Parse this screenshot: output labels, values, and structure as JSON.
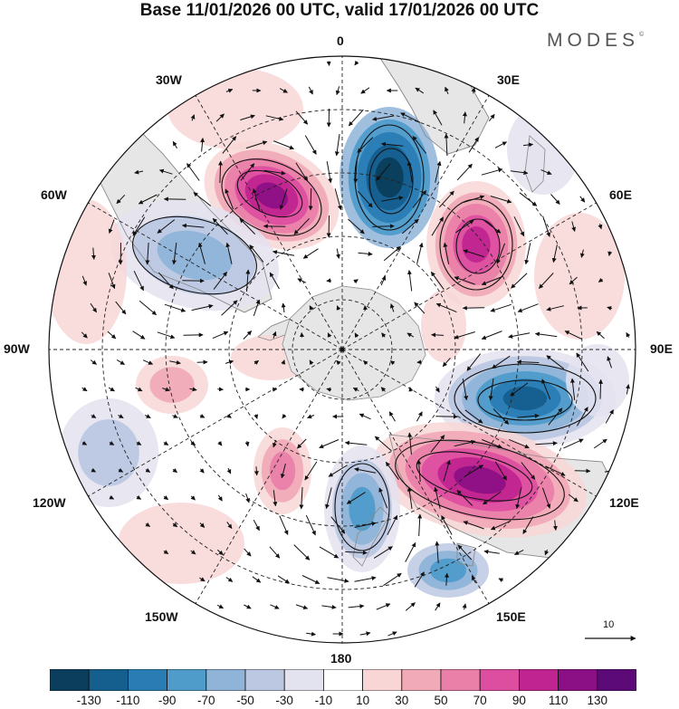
{
  "title": "Base 11/01/2026 00 UTC, valid 17/01/2026 00 UTC",
  "brand": "MODES",
  "brand_mark": "©",
  "longitude_labels": {
    "lon_0": "0",
    "lon_30e": "30E",
    "lon_60e": "60E",
    "lon_90e": "90E",
    "lon_120e": "120E",
    "lon_150e": "150E",
    "lon_180": "180",
    "lon_150w": "150W",
    "lon_120w": "120W",
    "lon_90w": "90W",
    "lon_60w": "60W",
    "lon_30w": "30W"
  },
  "reference_vector": {
    "label": "10"
  },
  "colorbar": {
    "colors": [
      "#0b3d5c",
      "#155f8f",
      "#2a7db4",
      "#4f9ccb",
      "#8fb4d8",
      "#bcc8e2",
      "#e3e2ef",
      "#ffffff",
      "#f8d6d6",
      "#f1aab8",
      "#ea7fa8",
      "#de4ea0",
      "#c02490",
      "#8c1085",
      "#5c0a77"
    ],
    "labels": [
      "-130",
      "-110",
      "-90",
      "-70",
      "-50",
      "-30",
      "-10",
      "10",
      "30",
      "50",
      "70",
      "90",
      "110",
      "130"
    ]
  },
  "map_colors": {
    "land": "#e6e6e6",
    "land_edge": "#9a9a9a"
  }
}
